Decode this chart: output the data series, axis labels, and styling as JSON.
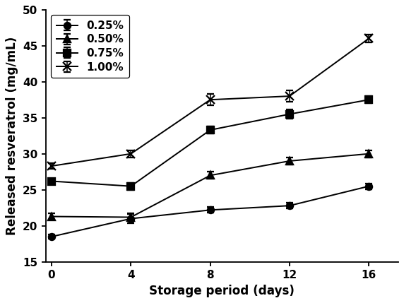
{
  "x": [
    0,
    4,
    8,
    12,
    16
  ],
  "series": [
    {
      "label": "0.25%",
      "values": [
        18.5,
        21.0,
        22.2,
        22.8,
        25.5
      ],
      "errors": [
        0.3,
        0.6,
        0.4,
        0.4,
        0.4
      ],
      "marker": "o",
      "markersize": 6,
      "markerfacecolor": "black",
      "markeredgecolor": "black"
    },
    {
      "label": "0.50%",
      "values": [
        21.3,
        21.2,
        27.0,
        29.0,
        30.0
      ],
      "errors": [
        0.4,
        0.5,
        0.5,
        0.5,
        0.5
      ],
      "marker": "^",
      "markersize": 7,
      "markerfacecolor": "black",
      "markeredgecolor": "black"
    },
    {
      "label": "0.75%",
      "values": [
        26.2,
        25.5,
        33.3,
        35.5,
        37.5
      ],
      "errors": [
        0.3,
        0.5,
        0.5,
        0.6,
        0.5
      ],
      "marker": "s",
      "markersize": 6,
      "markerfacecolor": "black",
      "markeredgecolor": "black"
    },
    {
      "label": "1.00%",
      "values": [
        28.3,
        30.0,
        37.5,
        38.0,
        46.0
      ],
      "errors": [
        0.4,
        0.5,
        0.8,
        0.8,
        0.5
      ],
      "marker": "x",
      "markersize": 8,
      "markerfacecolor": "none",
      "markeredgecolor": "black"
    }
  ],
  "xlabel": "Storage period (days)",
  "ylabel": "Released resveratrol (mg/mL)",
  "xlim": [
    -0.3,
    17.5
  ],
  "ylim": [
    15,
    50
  ],
  "xticks": [
    0,
    4,
    8,
    12,
    16
  ],
  "yticks": [
    15,
    20,
    25,
    30,
    35,
    40,
    45,
    50
  ],
  "legend_loc": "upper left",
  "background_color": "#ffffff",
  "font_size": 11,
  "label_fontsize": 11,
  "tick_fontsize": 10
}
